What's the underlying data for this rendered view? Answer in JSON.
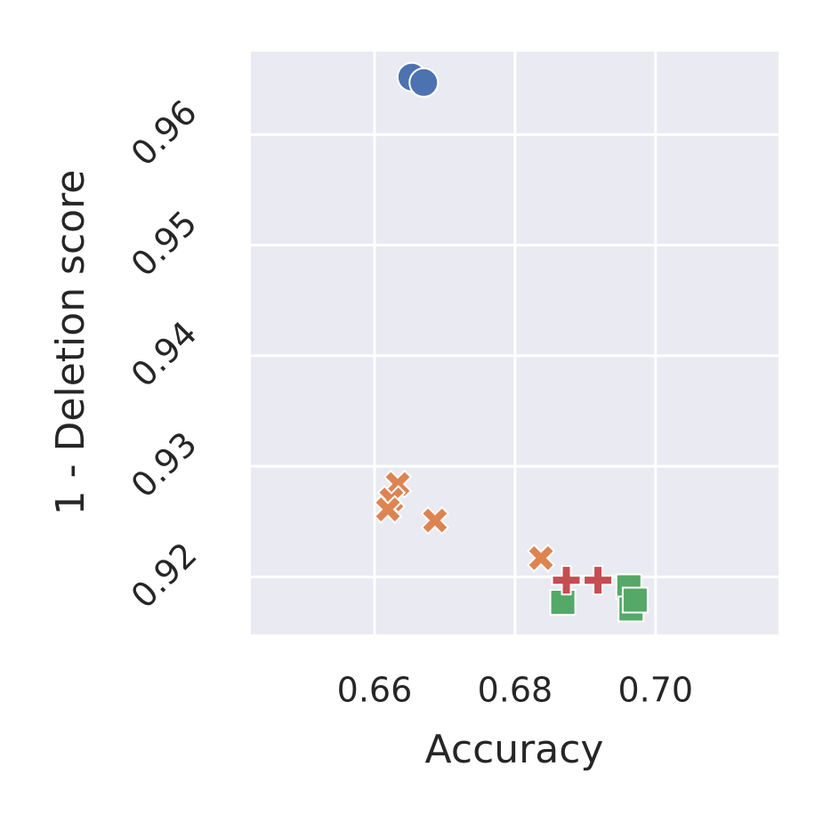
{
  "chart_data": {
    "type": "scatter",
    "x_label": "Accuracy",
    "y_label": "1 - Deletion score",
    "xlim": [
      0.6424,
      0.7175
    ],
    "ylim": [
      0.9148,
      0.9675
    ],
    "xticks": [
      {
        "value": 0.66,
        "label": "0.66"
      },
      {
        "value": 0.68,
        "label": "0.68"
      },
      {
        "value": 0.7,
        "label": "0.70"
      }
    ],
    "yticks": [
      0.92,
      0.93,
      0.94,
      0.95,
      0.96
    ],
    "grid": true,
    "series": [
      {
        "color": "#4c72b0",
        "marker": "circle",
        "x": [
          0.6653,
          0.667
        ],
        "y": [
          0.9652,
          0.9647
        ]
      },
      {
        "color": "#dd8452",
        "marker": "x",
        "x": [
          0.6633,
          0.6624,
          0.6619,
          0.6686,
          0.6837
        ],
        "y": [
          0.9284,
          0.927,
          0.9261,
          0.9251,
          0.9217
        ]
      },
      {
        "color": "#55a868",
        "marker": "square",
        "x": [
          0.6868,
          0.6962,
          0.6965,
          0.6971
        ],
        "y": [
          0.9177,
          0.9191,
          0.9171,
          0.9179
        ]
      },
      {
        "color": "#c44e52",
        "marker": "plus",
        "x": [
          0.6873,
          0.6918
        ],
        "y": [
          0.9197,
          0.9197
        ]
      }
    ]
  }
}
